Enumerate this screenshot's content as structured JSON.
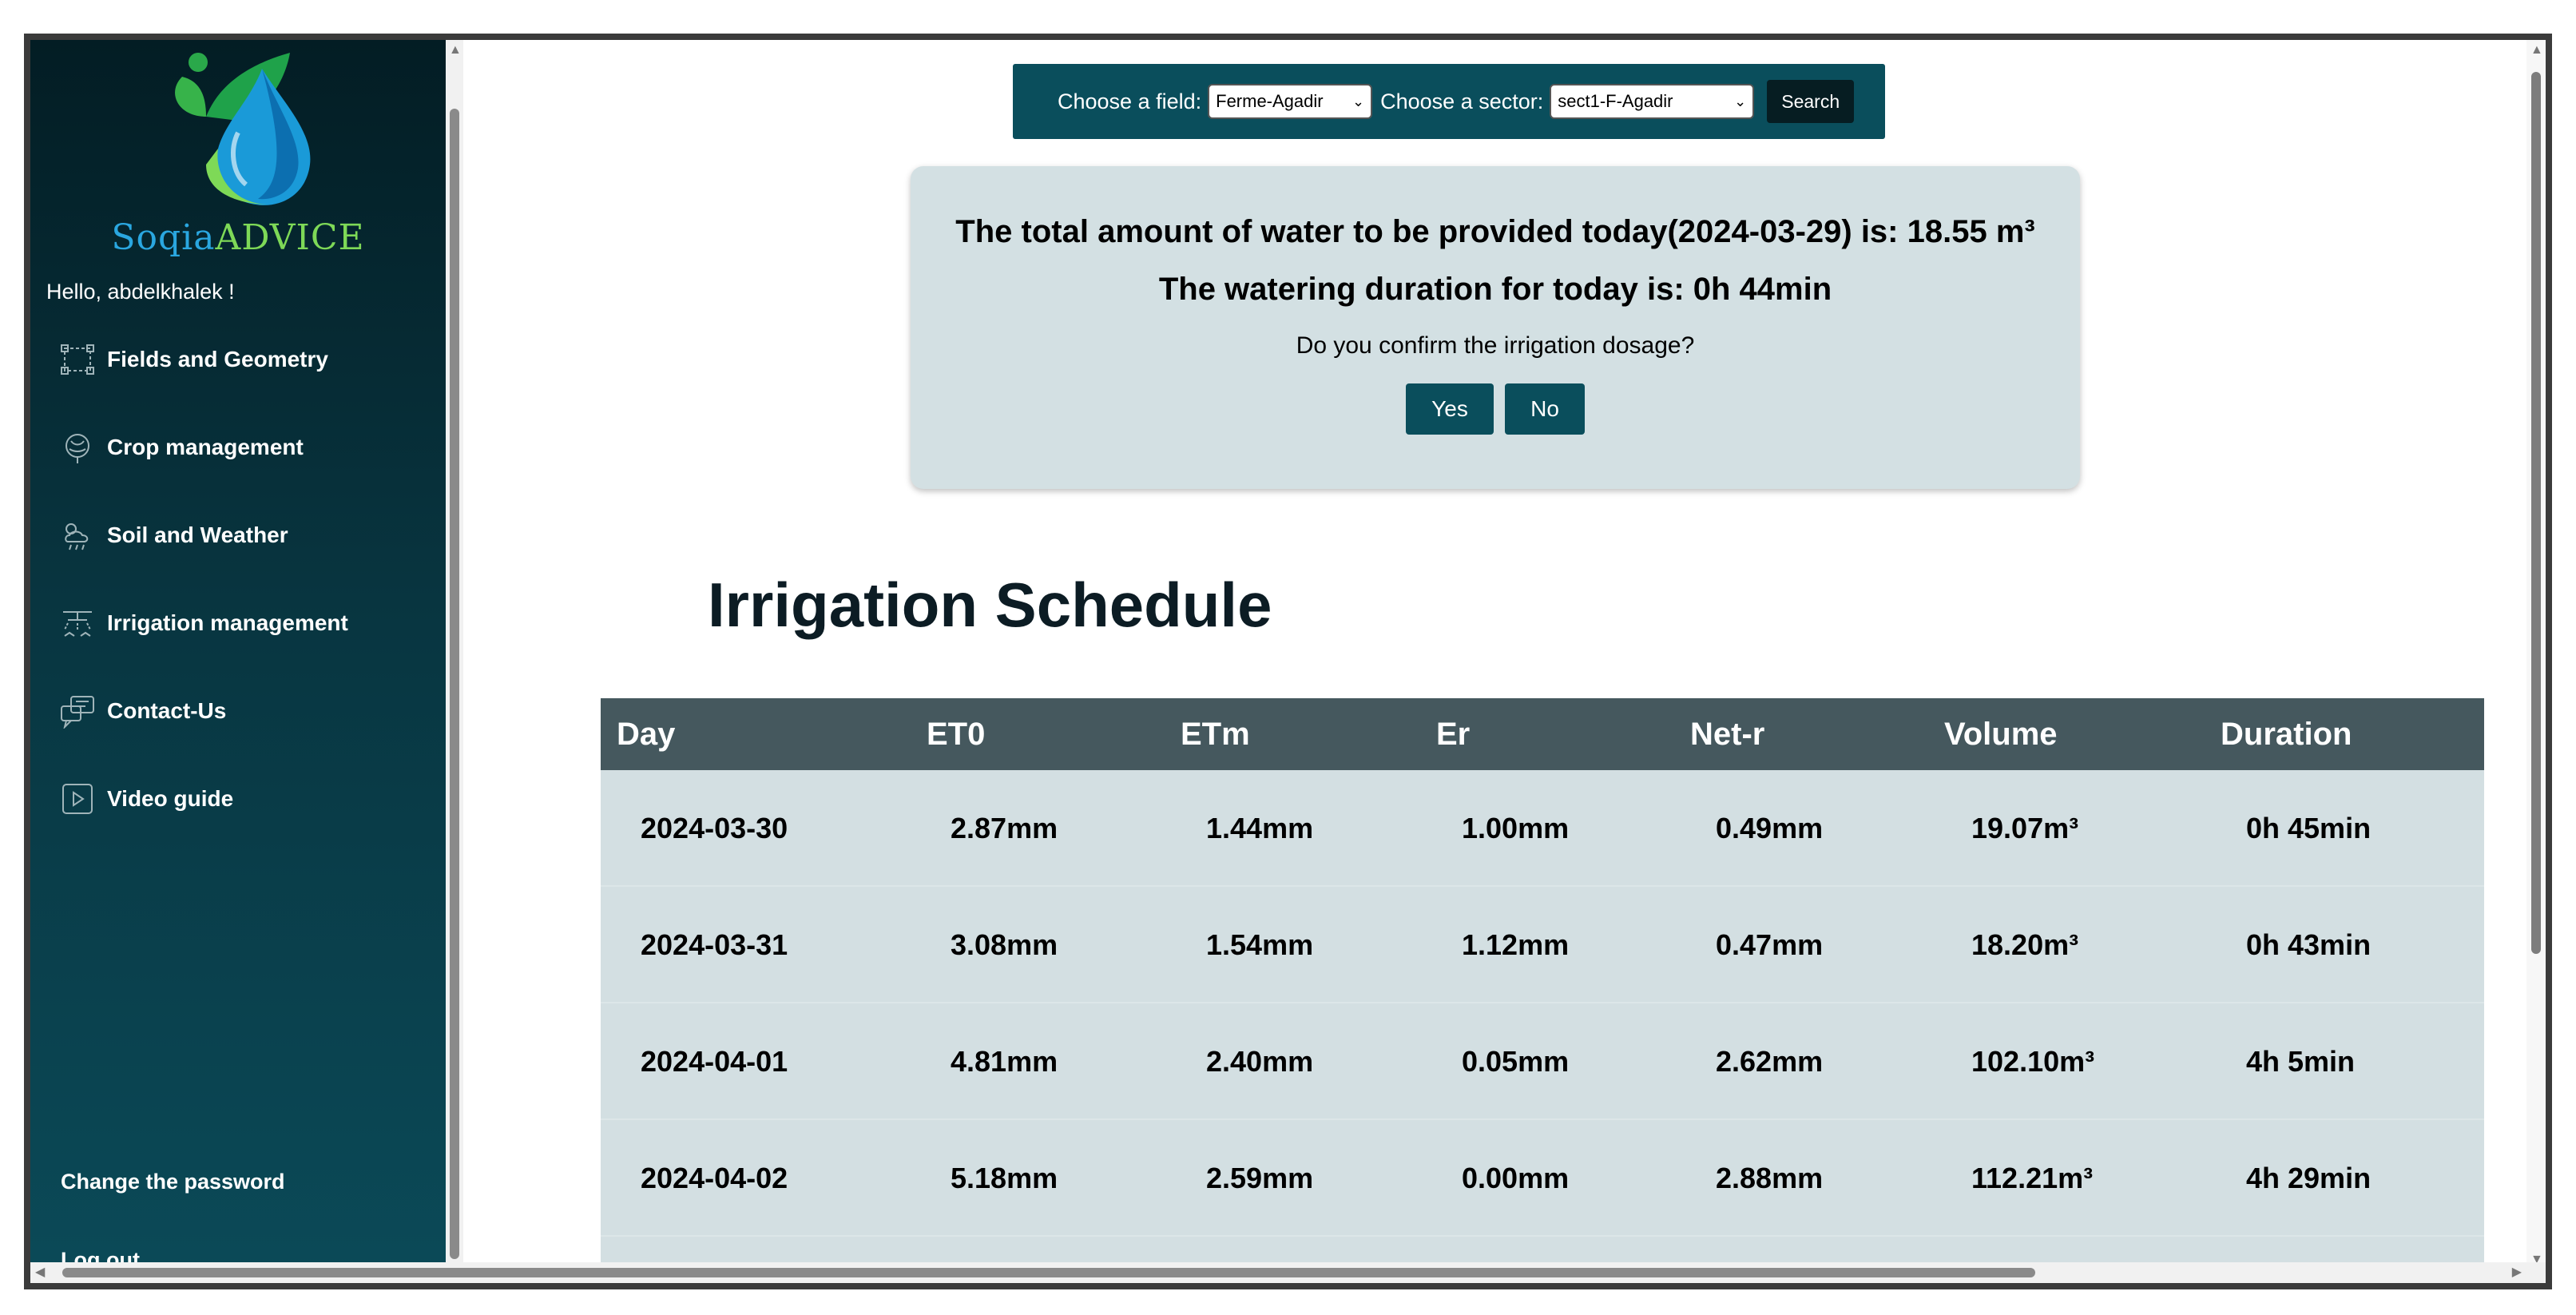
{
  "brand": {
    "part1": "Soqia",
    "part2": "ADVICE"
  },
  "greeting": "Hello, abdelkhalek !",
  "nav": [
    {
      "label": "Fields and Geometry",
      "icon": "field-geometry-icon"
    },
    {
      "label": "Crop management",
      "icon": "crop-icon"
    },
    {
      "label": "Soil and Weather",
      "icon": "weather-icon"
    },
    {
      "label": "Irrigation management",
      "icon": "irrigation-icon"
    },
    {
      "label": "Contact-Us",
      "icon": "chat-icon"
    },
    {
      "label": "Video guide",
      "icon": "play-icon"
    }
  ],
  "bottom_links": {
    "change_password": "Change the password",
    "logout": "Log out"
  },
  "filter": {
    "field_label": "Choose a field:",
    "field_value": "Ferme-Agadir",
    "sector_label": "Choose a sector:",
    "sector_value": "sect1-F-Agadir",
    "search_label": "Search"
  },
  "confirm": {
    "total_text": "The total amount of water to be provided today(2024-03-29) is: 18.55 m³",
    "duration_text": "The watering duration for today is: 0h 44min",
    "question": "Do you confirm the irrigation dosage?",
    "yes": "Yes",
    "no": "No"
  },
  "schedule": {
    "title": "Irrigation Schedule",
    "columns": [
      "Day",
      "ET0",
      "ETm",
      "Er",
      "Net-r",
      "Volume",
      "Duration"
    ],
    "rows": [
      [
        "2024-03-30",
        "2.87mm",
        "1.44mm",
        "1.00mm",
        "0.49mm",
        "19.07m³",
        "0h 45min"
      ],
      [
        "2024-03-31",
        "3.08mm",
        "1.54mm",
        "1.12mm",
        "0.47mm",
        "18.20m³",
        "0h 43min"
      ],
      [
        "2024-04-01",
        "4.81mm",
        "2.40mm",
        "0.05mm",
        "2.62mm",
        "102.10m³",
        "4h 5min"
      ],
      [
        "2024-04-02",
        "5.18mm",
        "2.59mm",
        "0.00mm",
        "2.88mm",
        "112.21m³",
        "4h 29min"
      ]
    ]
  },
  "colors": {
    "sidebar_top": "#031d24",
    "sidebar_bottom": "#0b4a58",
    "accent": "#0a4e5c",
    "table_header": "#45585e",
    "table_row": "#d3dfe2",
    "confirm_bg": "#d3e0e3"
  }
}
